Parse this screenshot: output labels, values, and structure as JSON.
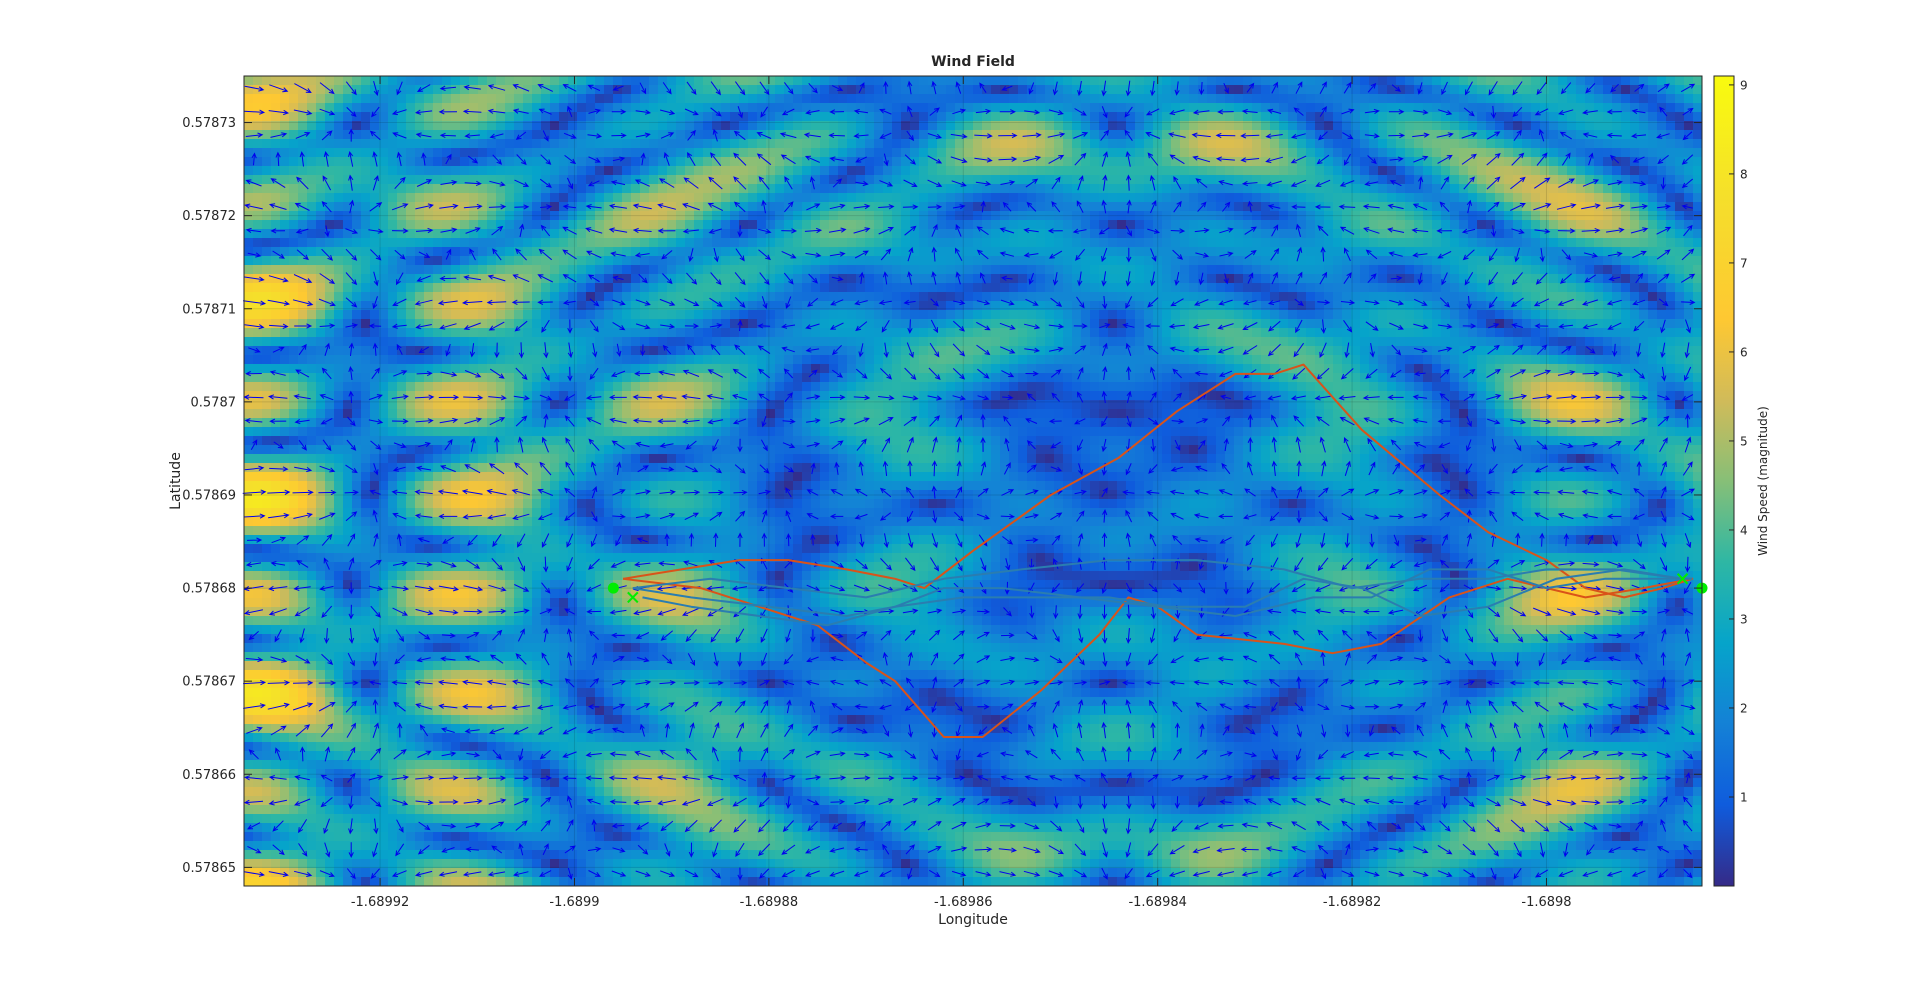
{
  "chart_data": {
    "type": "heatmap",
    "title": "Wind Field",
    "xlabel": "Longitude",
    "ylabel": "Latitude",
    "colorbar_label": "Wind Speed (magnitude)",
    "xlim": [
      -1.689934,
      -1.689784
    ],
    "ylim": [
      0.578648,
      0.578735
    ],
    "clim": [
      0,
      9.1
    ],
    "x_ticks": [
      -1.68992,
      -1.6899,
      -1.68988,
      -1.68986,
      -1.68984,
      -1.68982,
      -1.6898
    ],
    "x_tick_labels": [
      "-1.68992",
      "-1.6899",
      "-1.68988",
      "-1.68986",
      "-1.68984",
      "-1.68982",
      "-1.6898"
    ],
    "y_ticks": [
      0.57865,
      0.57866,
      0.57867,
      0.57868,
      0.57869,
      0.5787,
      0.57871,
      0.57872,
      0.57873
    ],
    "y_tick_labels": [
      "0.57865",
      "0.57866",
      "0.57867",
      "0.57868",
      "0.57869",
      "0.5787",
      "0.57871",
      "0.57872",
      "0.57873"
    ],
    "colorbar_ticks": [
      1,
      2,
      3,
      4,
      5,
      6,
      7,
      8,
      9
    ],
    "colorbar_tick_labels": [
      "1",
      "2",
      "3",
      "4",
      "5",
      "6",
      "7",
      "8",
      "9"
    ],
    "colormap": "parula",
    "grid": true,
    "quiver_color": "#0000ee",
    "series": [
      {
        "color": "#d95319",
        "points": [
          [
            -1.689895,
            0.578681
          ],
          [
            -1.689889,
            0.578682
          ],
          [
            -1.689883,
            0.578683
          ],
          [
            -1.689878,
            0.578683
          ],
          [
            -1.689872,
            0.578682
          ],
          [
            -1.689867,
            0.578681
          ],
          [
            -1.689864,
            0.57868
          ],
          [
            -1.689859,
            0.578684
          ],
          [
            -1.689851,
            0.57869
          ],
          [
            -1.689844,
            0.578694
          ],
          [
            -1.689838,
            0.578699
          ],
          [
            -1.689832,
            0.578703
          ],
          [
            -1.689828,
            0.578703
          ],
          [
            -1.689825,
            0.578704
          ],
          [
            -1.689819,
            0.578697
          ],
          [
            -1.689811,
            0.57869
          ],
          [
            -1.689806,
            0.578686
          ],
          [
            -1.6898,
            0.578683
          ],
          [
            -1.689796,
            0.57868
          ],
          [
            -1.689792,
            0.578679
          ],
          [
            -1.689788,
            0.57868
          ],
          [
            -1.689785,
            0.578681
          ],
          [
            -1.689786,
            0.578681
          ]
        ]
      },
      {
        "color": "#d95319",
        "points": [
          [
            -1.689895,
            0.578681
          ],
          [
            -1.689887,
            0.57868
          ],
          [
            -1.689881,
            0.578678
          ],
          [
            -1.689875,
            0.578676
          ],
          [
            -1.68987,
            0.578672
          ],
          [
            -1.689867,
            0.57867
          ],
          [
            -1.689862,
            0.578664
          ],
          [
            -1.689858,
            0.578664
          ],
          [
            -1.689852,
            0.578669
          ],
          [
            -1.689846,
            0.578675
          ],
          [
            -1.689843,
            0.578679
          ],
          [
            -1.68984,
            0.578678
          ],
          [
            -1.689836,
            0.578675
          ],
          [
            -1.689827,
            0.578674
          ],
          [
            -1.689822,
            0.578673
          ],
          [
            -1.689817,
            0.578674
          ],
          [
            -1.68981,
            0.578679
          ],
          [
            -1.689804,
            0.578681
          ],
          [
            -1.689796,
            0.578679
          ],
          [
            -1.68979,
            0.57868
          ],
          [
            -1.689785,
            0.578681
          ]
        ]
      },
      {
        "color": "#2a7db0",
        "points": [
          [
            -1.689894,
            0.57868
          ],
          [
            -1.689888,
            0.578679
          ],
          [
            -1.68988,
            0.578678
          ],
          [
            -1.689872,
            0.578677
          ],
          [
            -1.689867,
            0.578678
          ],
          [
            -1.689862,
            0.57868
          ],
          [
            -1.689856,
            0.57868
          ],
          [
            -1.689848,
            0.578679
          ],
          [
            -1.68984,
            0.578678
          ],
          [
            -1.689832,
            0.578677
          ],
          [
            -1.689824,
            0.578679
          ],
          [
            -1.689818,
            0.578679
          ],
          [
            -1.689812,
            0.578682
          ],
          [
            -1.689806,
            0.578682
          ],
          [
            -1.6898,
            0.57868
          ],
          [
            -1.689794,
            0.578681
          ],
          [
            -1.689788,
            0.578681
          ],
          [
            -1.689785,
            0.578681
          ]
        ]
      },
      {
        "color": "#2a7db0",
        "points": [
          [
            -1.689893,
            0.578679
          ],
          [
            -1.689888,
            0.578678
          ],
          [
            -1.689881,
            0.578677
          ],
          [
            -1.689874,
            0.578676
          ],
          [
            -1.689867,
            0.578678
          ],
          [
            -1.68986,
            0.578679
          ],
          [
            -1.689852,
            0.578679
          ],
          [
            -1.689845,
            0.578679
          ],
          [
            -1.689839,
            0.578678
          ],
          [
            -1.689831,
            0.578678
          ],
          [
            -1.689825,
            0.578681
          ],
          [
            -1.689819,
            0.57868
          ],
          [
            -1.689813,
            0.578677
          ],
          [
            -1.689806,
            0.578678
          ],
          [
            -1.689799,
            0.578681
          ],
          [
            -1.689792,
            0.578682
          ],
          [
            -1.689786,
            0.578681
          ]
        ]
      },
      {
        "color": "#2a7db0",
        "points": [
          [
            -1.689894,
            0.57868
          ],
          [
            -1.689886,
            0.578681
          ],
          [
            -1.689878,
            0.57868
          ],
          [
            -1.68987,
            0.578679
          ],
          [
            -1.689862,
            0.578681
          ],
          [
            -1.689854,
            0.578682
          ],
          [
            -1.689845,
            0.578683
          ],
          [
            -1.689836,
            0.578683
          ],
          [
            -1.689827,
            0.578682
          ],
          [
            -1.68982,
            0.57868
          ],
          [
            -1.689813,
            0.578681
          ],
          [
            -1.689806,
            0.578681
          ],
          [
            -1.6898,
            0.578682
          ],
          [
            -1.689793,
            0.578682
          ],
          [
            -1.689786,
            0.578681
          ]
        ]
      }
    ],
    "start_point": [
      -1.689896,
      0.57868
    ],
    "end_point": [
      -1.689784,
      0.57868
    ],
    "markers": [
      [
        -1.689894,
        0.578679
      ],
      [
        -1.689786,
        0.578681
      ]
    ]
  }
}
